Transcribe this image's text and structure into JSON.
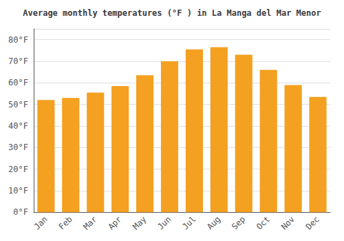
{
  "chart_data": {
    "type": "bar",
    "title": "Average monthly temperatures (°F ) in La Manga del Mar Menor",
    "categories": [
      "Jan",
      "Feb",
      "Mar",
      "Apr",
      "May",
      "Jun",
      "Jul",
      "Aug",
      "Sep",
      "Oct",
      "Nov",
      "Dec"
    ],
    "values": [
      52,
      53,
      55.5,
      58.5,
      63.5,
      70,
      75.5,
      76.5,
      73,
      66,
      59,
      53.5
    ],
    "color": "#F4A020",
    "ylim": [
      0,
      85
    ],
    "yticks": [
      {
        "value": 0,
        "label": "0°F"
      },
      {
        "value": 10,
        "label": "10°F"
      },
      {
        "value": 20,
        "label": "20°F"
      },
      {
        "value": 30,
        "label": "30°F"
      },
      {
        "value": 40,
        "label": "40°F"
      },
      {
        "value": 50,
        "label": "50°F"
      },
      {
        "value": 60,
        "label": "60°F"
      },
      {
        "value": 70,
        "label": "70°F"
      },
      {
        "value": 80,
        "label": "80°F"
      }
    ],
    "grid": true
  }
}
